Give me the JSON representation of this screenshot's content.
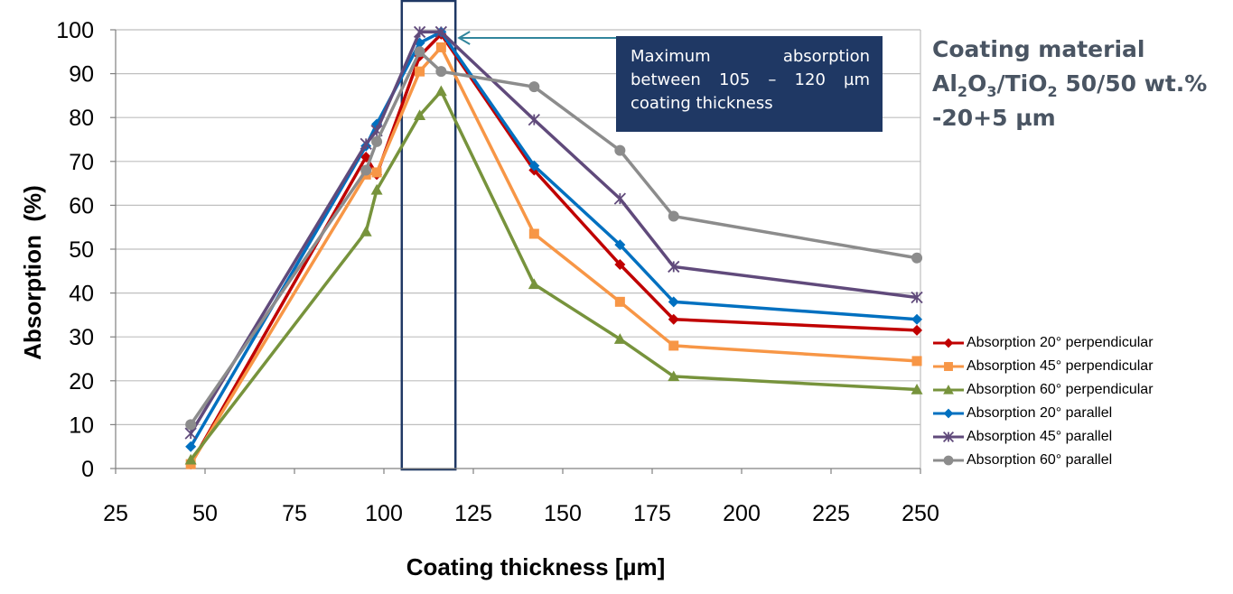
{
  "chart_data": {
    "type": "line",
    "title": "",
    "xlabel": "Coating thickness [µm]",
    "ylabel": "Absorption  (%)",
    "xlim": [
      25,
      250
    ],
    "ylim": [
      0,
      100
    ],
    "x_ticks": [
      25,
      50,
      75,
      100,
      125,
      150,
      175,
      200,
      225,
      250
    ],
    "y_ticks": [
      0,
      10,
      20,
      30,
      40,
      50,
      60,
      70,
      80,
      90,
      100
    ],
    "grid": "horizontal",
    "legend_position": "right",
    "series": [
      {
        "name": "Absorption 20° perpendicular",
        "color": "#c00000",
        "marker": "diamond",
        "x": [
          46,
          95,
          98,
          110,
          116,
          142,
          166,
          181,
          249
        ],
        "y": [
          1,
          71,
          67,
          94,
          99,
          68,
          46.5,
          34,
          31.5
        ]
      },
      {
        "name": "Absorption 45° perpendicular",
        "color": "#f79646",
        "marker": "square",
        "x": [
          46,
          95,
          98,
          110,
          116,
          142,
          166,
          181,
          249
        ],
        "y": [
          1,
          67,
          67.5,
          90.5,
          96,
          53.5,
          38,
          28,
          24.5
        ]
      },
      {
        "name": "Absorption 60° perpendicular",
        "color": "#77933c",
        "marker": "triangle",
        "x": [
          46,
          95,
          98,
          110,
          116,
          142,
          166,
          181,
          249
        ],
        "y": [
          2,
          54,
          63.5,
          80.5,
          86,
          42,
          29.5,
          21,
          18
        ]
      },
      {
        "name": "Absorption 20° parallel",
        "color": "#0070c0",
        "marker": "diamond",
        "x": [
          46,
          95,
          98,
          110,
          116,
          142,
          166,
          181,
          249
        ],
        "y": [
          5,
          73.5,
          78.5,
          97,
          99.5,
          69,
          51,
          38,
          34
        ]
      },
      {
        "name": "Absorption 45° parallel",
        "color": "#604a7b",
        "marker": "star",
        "x": [
          46,
          95,
          98,
          110,
          116,
          142,
          166,
          181,
          249
        ],
        "y": [
          8,
          74,
          77,
          99.5,
          99.5,
          79.5,
          61.5,
          46,
          39
        ]
      },
      {
        "name": "Absorption 60° parallel",
        "color": "#8c8c8c",
        "marker": "circle",
        "x": [
          46,
          95,
          98,
          110,
          116,
          142,
          166,
          181,
          249
        ],
        "y": [
          10,
          68,
          74.5,
          95,
          90.5,
          87,
          72.5,
          57.5,
          48
        ]
      }
    ],
    "annotations": {
      "highlight_range_x": [
        105,
        120
      ],
      "callout_text": "Maximum absorption between 105 – 120 µm coating thickness"
    }
  },
  "side_note": {
    "line1": "Coating material",
    "line2_a": "Al",
    "line2_sub1": "2",
    "line2_b": "O",
    "line2_sub2": "3",
    "line2_c": "/TiO",
    "line2_sub3": "2",
    "line2_d": " 50/50 wt.%",
    "line3": "-20+5 µm"
  },
  "colors": {
    "callout_bg": "#1f3864",
    "callout_arrow": "#31859c",
    "highlight_box": "#1f3864",
    "side_note_text": "#4a5563",
    "grid": "#bfbfbf"
  }
}
